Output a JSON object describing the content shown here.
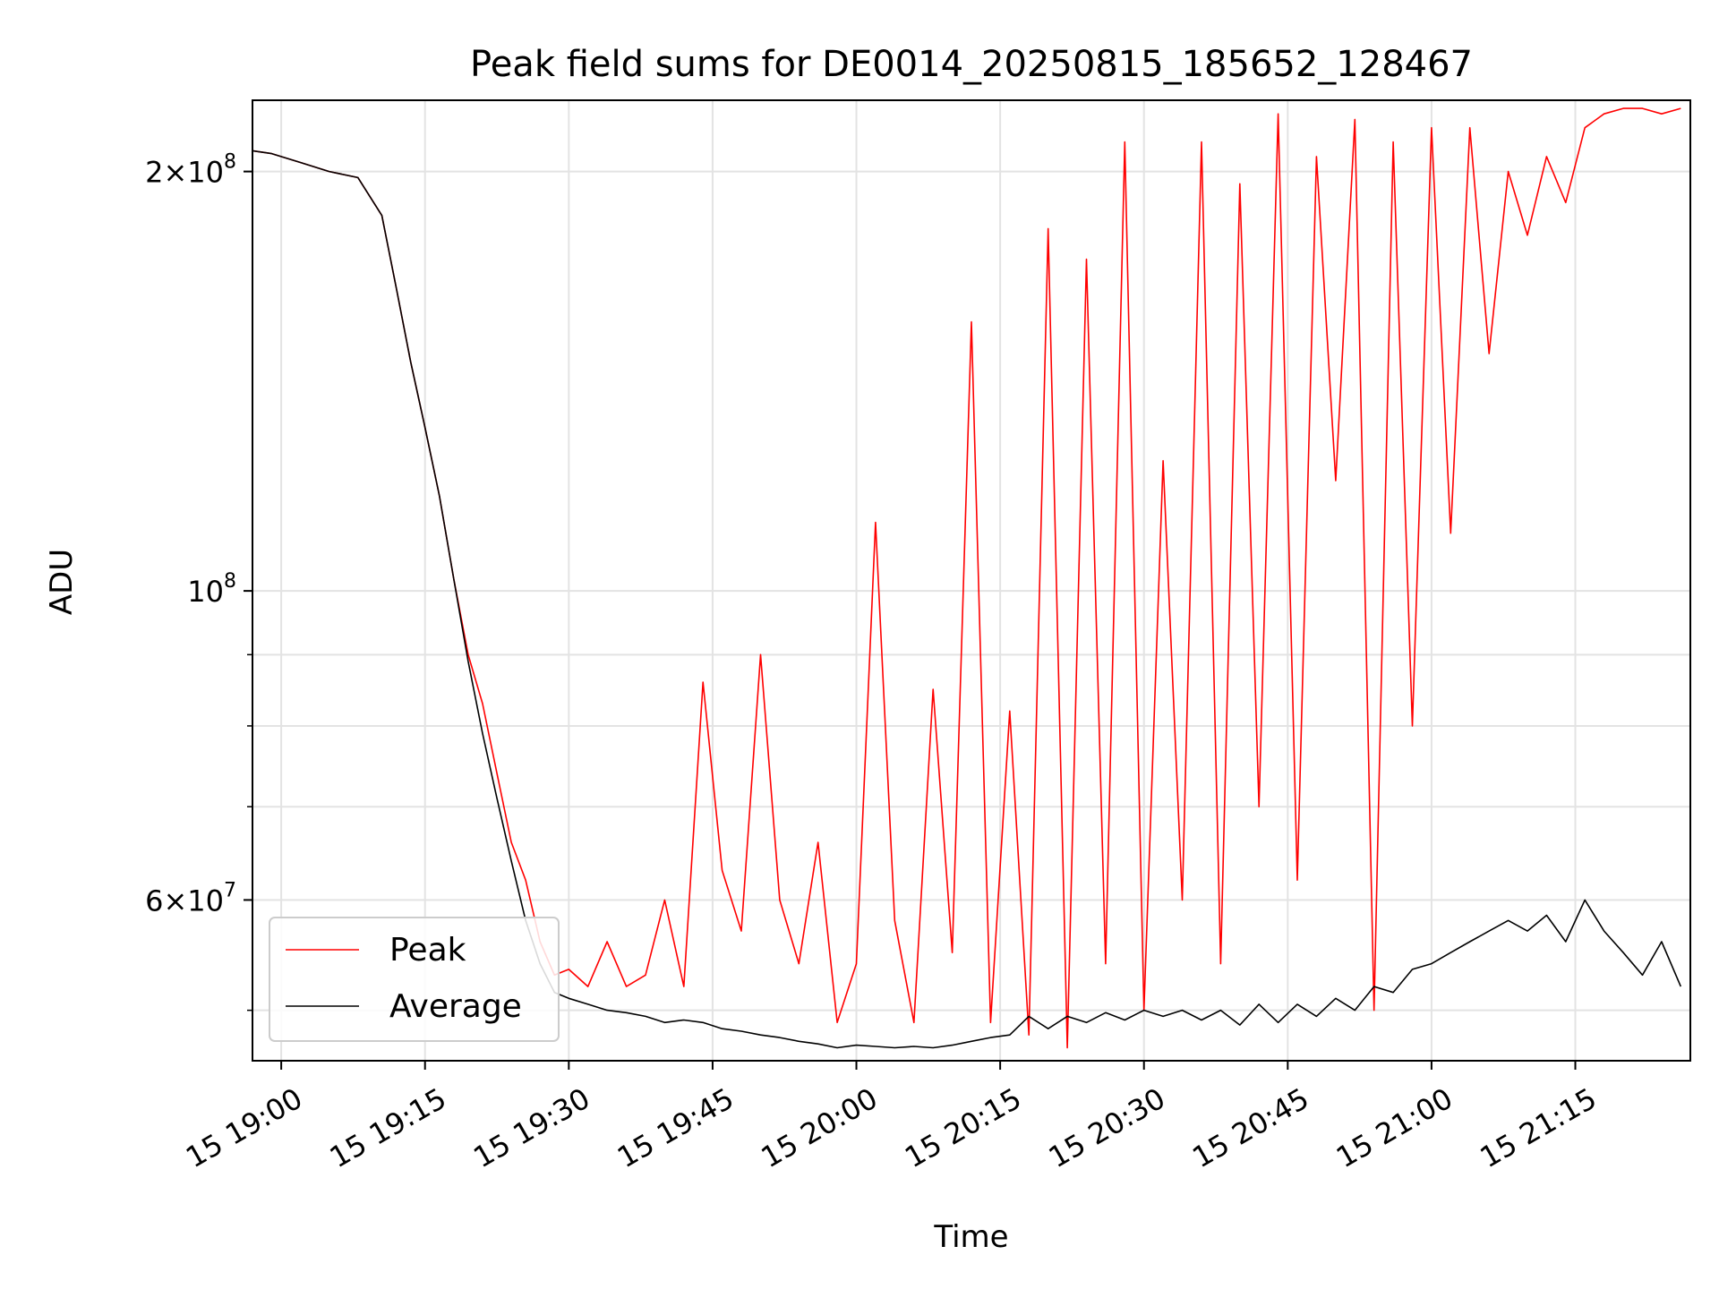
{
  "chart_data": {
    "type": "line",
    "title": "Peak field sums for DE0014_20250815_185652_128467",
    "xlabel": "Time",
    "ylabel": "ADU",
    "yscale": "log",
    "ylim": [
      46000000,
      225000000
    ],
    "xlim": [
      "15 18:57",
      "15 21:27"
    ],
    "grid": true,
    "legend": "lower-left",
    "x_tick_labels": [
      "15 19:00",
      "15 19:15",
      "15 19:30",
      "15 19:45",
      "15 20:00",
      "15 20:15",
      "15 20:30",
      "15 20:45",
      "15 21:00",
      "15 21:15"
    ],
    "y_tick_labels": [
      {
        "value": 200000000,
        "base": "2",
        "exp": "8"
      },
      {
        "value": 100000000,
        "base": "",
        "exp": "8"
      },
      {
        "value": 60000000,
        "base": "6",
        "exp": "7"
      }
    ],
    "y_minor_ticks": [
      50000000,
      70000000,
      80000000,
      90000000
    ],
    "x_minutes_from_19_00": [
      -3,
      -1,
      2,
      5,
      8,
      10.5,
      12,
      13.5,
      15,
      16.5,
      18,
      19.5,
      21,
      22.5,
      24,
      25.5,
      27,
      28.5,
      30,
      32,
      34,
      36,
      38,
      40,
      42,
      44,
      46,
      48,
      50,
      52,
      54,
      56,
      58,
      60,
      62,
      64,
      66,
      68,
      70,
      72,
      74,
      76,
      78,
      80,
      82,
      84,
      86,
      88,
      90,
      92,
      94,
      96,
      98,
      100,
      102,
      104,
      106,
      108,
      110,
      112,
      114,
      116,
      118,
      120,
      122,
      124,
      126,
      128,
      130,
      132,
      134,
      136,
      138,
      140,
      142,
      144,
      146
    ],
    "series": [
      {
        "name": "Peak",
        "color": "#ff0000",
        "values": [
          207000000,
          206000000,
          203000000,
          200000000,
          198000000,
          186000000,
          165000000,
          146000000,
          131000000,
          117000000,
          102000000,
          90000000,
          83000000,
          74000000,
          66000000,
          62000000,
          56000000,
          53000000,
          53500000,
          52000000,
          56000000,
          52000000,
          53000000,
          60000000,
          52000000,
          86000000,
          63000000,
          57000000,
          90000000,
          60000000,
          54000000,
          66000000,
          49000000,
          54000000,
          112000000,
          58000000,
          49000000,
          85000000,
          55000000,
          156000000,
          49000000,
          82000000,
          48000000,
          182000000,
          47000000,
          173000000,
          54000000,
          210000000,
          50000000,
          124000000,
          60000000,
          210000000,
          54000000,
          196000000,
          70000000,
          220000000,
          62000000,
          205000000,
          120000000,
          218000000,
          50000000,
          210000000,
          80000000,
          215000000,
          110000000,
          215000000,
          148000000,
          200000000,
          180000000,
          205000000,
          190000000,
          215000000,
          220000000,
          222000000,
          222000000,
          220000000,
          222000000
        ]
      },
      {
        "name": "Average",
        "color": "#000000",
        "values": [
          207000000,
          206000000,
          203000000,
          200000000,
          198000000,
          186000000,
          165000000,
          146000000,
          131000000,
          117000000,
          102000000,
          89000000,
          79000000,
          71000000,
          64000000,
          58000000,
          54000000,
          51500000,
          51000000,
          50500000,
          50000000,
          49800000,
          49500000,
          49000000,
          49200000,
          49000000,
          48500000,
          48300000,
          48000000,
          47800000,
          47500000,
          47300000,
          47000000,
          47200000,
          47100000,
          47000000,
          47100000,
          47000000,
          47200000,
          47500000,
          47800000,
          48000000,
          49500000,
          48500000,
          49500000,
          49000000,
          49800000,
          49200000,
          50000000,
          49500000,
          50000000,
          49200000,
          50000000,
          48800000,
          50500000,
          49000000,
          50500000,
          49500000,
          51000000,
          50000000,
          52000000,
          51500000,
          53500000,
          54000000,
          55000000,
          56000000,
          57000000,
          58000000,
          57000000,
          58500000,
          56000000,
          60000000,
          57000000,
          55000000,
          53000000,
          56000000,
          52000000
        ]
      }
    ]
  }
}
